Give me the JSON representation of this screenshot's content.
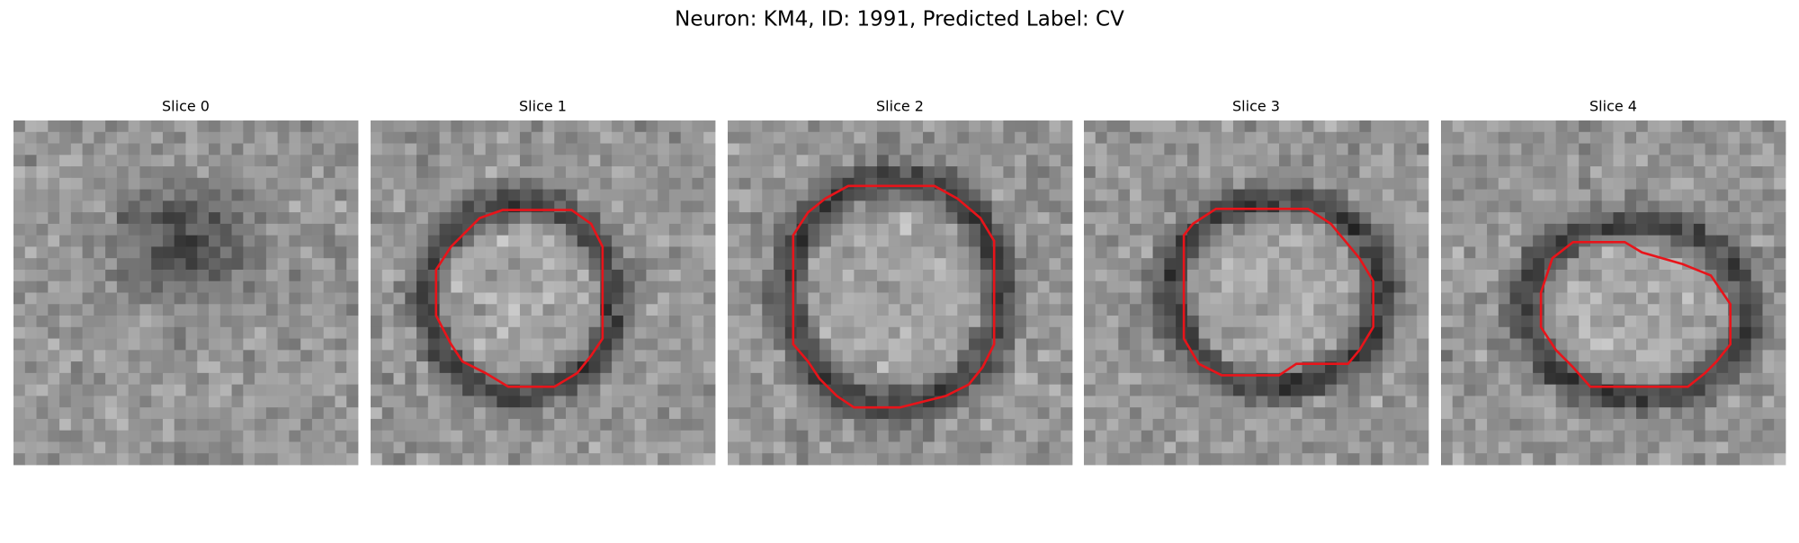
{
  "title": "Neuron: KM4, ID: 1991, Predicted Label: CV",
  "panels": [
    {
      "title": "Slice 0"
    },
    {
      "title": "Slice 1"
    },
    {
      "title": "Slice 2"
    },
    {
      "title": "Slice 3"
    },
    {
      "title": "Slice 4"
    }
  ]
}
